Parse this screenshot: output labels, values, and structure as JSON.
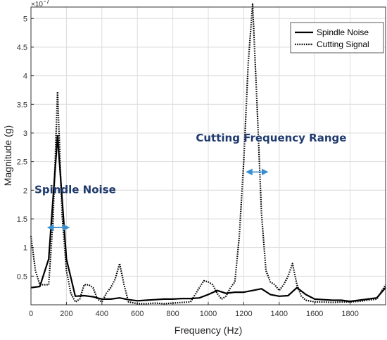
{
  "chart_data": {
    "type": "line",
    "title": "",
    "xlabel": "Frequency (Hz)",
    "ylabel": "Magnitude (g)",
    "y_exponent_base": "×10",
    "y_exponent_power": "-7",
    "xlim": [
      0,
      2000
    ],
    "ylim": [
      0,
      5.2
    ],
    "grid": true,
    "legend_placement": "top-right",
    "x_ticks": [
      "0",
      "200",
      "400",
      "600",
      "800",
      "1000",
      "1200",
      "1400",
      "1600",
      "1800"
    ],
    "x_tick_values": [
      0,
      200,
      400,
      600,
      800,
      1000,
      1200,
      1400,
      1600,
      1800
    ],
    "y_ticks": [
      "0.5",
      "1",
      "1.5",
      "2",
      "2.5",
      "3",
      "3.5",
      "4",
      "4.5",
      "5"
    ],
    "y_tick_values": [
      0.5,
      1,
      1.5,
      2,
      2.5,
      3,
      3.5,
      4,
      4.5,
      5
    ],
    "series": [
      {
        "name": "Spindle Noise",
        "style": "solid",
        "color": "#000000",
        "x": [
          0,
          50,
          100,
          150,
          200,
          250,
          300,
          350,
          400,
          450,
          500,
          550,
          600,
          650,
          700,
          750,
          800,
          850,
          900,
          950,
          1000,
          1050,
          1100,
          1150,
          1200,
          1250,
          1300,
          1350,
          1400,
          1450,
          1500,
          1550,
          1600,
          1650,
          1700,
          1750,
          1800,
          1850,
          1900,
          1950,
          2000
        ],
        "y": [
          0.3,
          0.32,
          0.8,
          2.95,
          0.8,
          0.15,
          0.16,
          0.14,
          0.1,
          0.1,
          0.12,
          0.09,
          0.07,
          0.08,
          0.09,
          0.1,
          0.1,
          0.11,
          0.11,
          0.12,
          0.18,
          0.25,
          0.2,
          0.22,
          0.22,
          0.25,
          0.28,
          0.18,
          0.15,
          0.16,
          0.3,
          0.18,
          0.1,
          0.09,
          0.08,
          0.08,
          0.06,
          0.08,
          0.1,
          0.12,
          0.3
        ]
      },
      {
        "name": "Cutting Signal",
        "style": "dotted",
        "color": "#000000",
        "x": [
          0,
          25,
          50,
          75,
          100,
          125,
          150,
          175,
          200,
          225,
          250,
          275,
          300,
          325,
          350,
          375,
          400,
          425,
          450,
          475,
          500,
          525,
          550,
          600,
          650,
          700,
          750,
          800,
          850,
          900,
          950,
          975,
          1000,
          1025,
          1050,
          1075,
          1100,
          1125,
          1150,
          1175,
          1200,
          1225,
          1250,
          1275,
          1300,
          1325,
          1350,
          1375,
          1400,
          1425,
          1450,
          1475,
          1500,
          1525,
          1550,
          1600,
          1650,
          1700,
          1750,
          1800,
          1850,
          1900,
          1950,
          2000
        ],
        "y": [
          1.2,
          0.6,
          0.35,
          0.35,
          0.35,
          1.5,
          3.72,
          1.6,
          0.6,
          0.2,
          0.05,
          0.1,
          0.35,
          0.35,
          0.3,
          0.1,
          0.05,
          0.2,
          0.3,
          0.45,
          0.72,
          0.35,
          0.05,
          0.02,
          0.02,
          0.03,
          0.02,
          0.03,
          0.04,
          0.05,
          0.3,
          0.42,
          0.4,
          0.35,
          0.2,
          0.1,
          0.15,
          0.3,
          0.4,
          1.2,
          2.5,
          4.2,
          5.25,
          3.5,
          1.6,
          0.6,
          0.4,
          0.35,
          0.25,
          0.35,
          0.5,
          0.72,
          0.35,
          0.15,
          0.08,
          0.05,
          0.05,
          0.04,
          0.05,
          0.05,
          0.06,
          0.08,
          0.1,
          0.35
        ]
      }
    ],
    "annotations": [
      {
        "text": "Spindle Noise",
        "x": 20,
        "y": 1.95,
        "arrow_x": [
          110,
          200
        ],
        "arrow_y": 1.35
      },
      {
        "text": "Cutting Frequency Range",
        "x": 930,
        "y": 2.85,
        "arrow_x": [
          1230,
          1320
        ],
        "arrow_y": 2.32
      }
    ],
    "arrow_color": "#3a8fd0"
  }
}
